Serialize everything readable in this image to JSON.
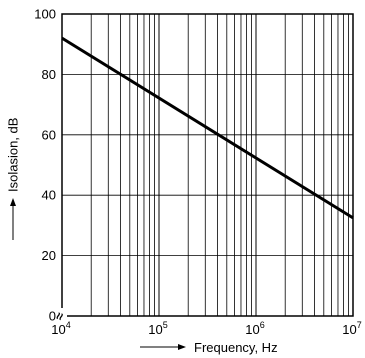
{
  "chart_data": {
    "type": "line",
    "title": "",
    "xlabel": "Frequency, Hz",
    "ylabel": "Isolasion, dB",
    "x_scale": "log",
    "xlim": [
      10000,
      10000000
    ],
    "ylim": [
      0,
      100
    ],
    "grid": true,
    "x_ticks": [
      10000,
      100000,
      1000000,
      10000000
    ],
    "x_tick_labels": [
      {
        "base": "10",
        "exp": "4"
      },
      {
        "base": "10",
        "exp": "5"
      },
      {
        "base": "10",
        "exp": "6"
      },
      {
        "base": "10",
        "exp": "7"
      }
    ],
    "y_ticks": [
      0,
      20,
      40,
      60,
      80,
      100
    ],
    "y_tick_labels": [
      "0",
      "20",
      "40",
      "60",
      "80",
      "100"
    ],
    "axis_break_symbol": "≈",
    "line_color": "#000000",
    "series": [
      {
        "x": [
          10000,
          10000000
        ],
        "y": [
          92,
          32.5
        ]
      }
    ]
  }
}
